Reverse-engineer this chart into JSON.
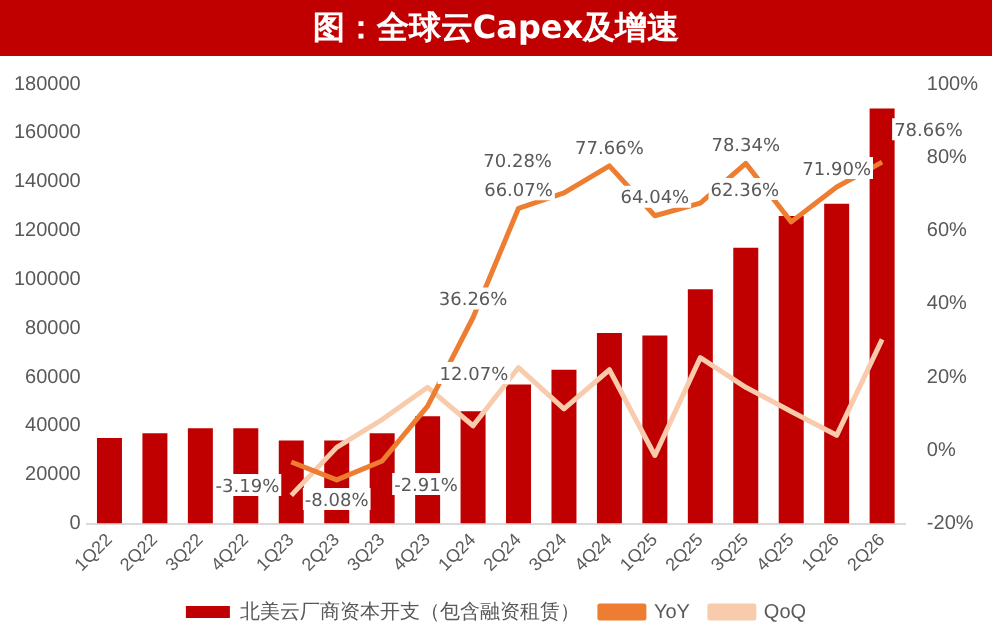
{
  "chart_data": {
    "type": "bar",
    "title": "图：全球云Capex及增速",
    "categories": [
      "1Q22",
      "2Q22",
      "3Q22",
      "4Q22",
      "1Q23",
      "2Q23",
      "3Q23",
      "4Q23",
      "1Q24",
      "2Q24",
      "3Q24",
      "4Q24",
      "1Q25",
      "2Q25",
      "3Q25",
      "4Q25",
      "1Q26",
      "2Q26"
    ],
    "series": [
      {
        "name": "北美云厂商资本开支（包含融资租赁）",
        "color": "#c00000",
        "values": [
          35000,
          37000,
          39000,
          39000,
          34000,
          34000,
          37000,
          44000,
          46000,
          57000,
          63000,
          78000,
          77000,
          96000,
          113000,
          126000,
          131000,
          170000
        ]
      },
      {
        "name": "YoY",
        "type": "line",
        "axis": "y2",
        "color": "#ed7d31",
        "values": [
          null,
          null,
          null,
          null,
          -3.19,
          -8.08,
          -2.91,
          12.07,
          36.26,
          66.07,
          70.28,
          77.66,
          64.04,
          67.5,
          78.34,
          62.36,
          71.9,
          78.66
        ],
        "value_labels": [
          null,
          null,
          null,
          null,
          "-3.19%",
          "-8.08%",
          "-2.91%",
          "12.07%",
          "36.26%",
          "66.07%",
          "70.28%",
          "77.66%",
          "64.04%",
          null,
          "78.34%",
          "62.36%",
          "71.90%",
          "78.66%"
        ]
      },
      {
        "name": "QoQ",
        "type": "line",
        "axis": "y2",
        "color": "#f8cbad",
        "values": [
          null,
          null,
          null,
          null,
          -12.3,
          0.8,
          8.4,
          17.2,
          6.7,
          22.6,
          11.3,
          22,
          -1.4,
          25.3,
          17.2,
          10.6,
          4.1,
          30.3
        ]
      }
    ],
    "ylim": [
      0,
      180000
    ],
    "yticks": [
      0,
      20000,
      40000,
      60000,
      80000,
      100000,
      120000,
      140000,
      160000,
      180000
    ],
    "y2lim": [
      -20,
      100
    ],
    "y2ticks": [
      {
        "value": -20,
        "label": "-20%"
      },
      {
        "value": 0,
        "label": "0%"
      },
      {
        "value": 20,
        "label": "20%"
      },
      {
        "value": 40,
        "label": "40%"
      },
      {
        "value": 60,
        "label": "60%"
      },
      {
        "value": 80,
        "label": "80%"
      },
      {
        "value": 100,
        "label": "100%"
      }
    ],
    "legend": "bottom",
    "marker": "none"
  }
}
